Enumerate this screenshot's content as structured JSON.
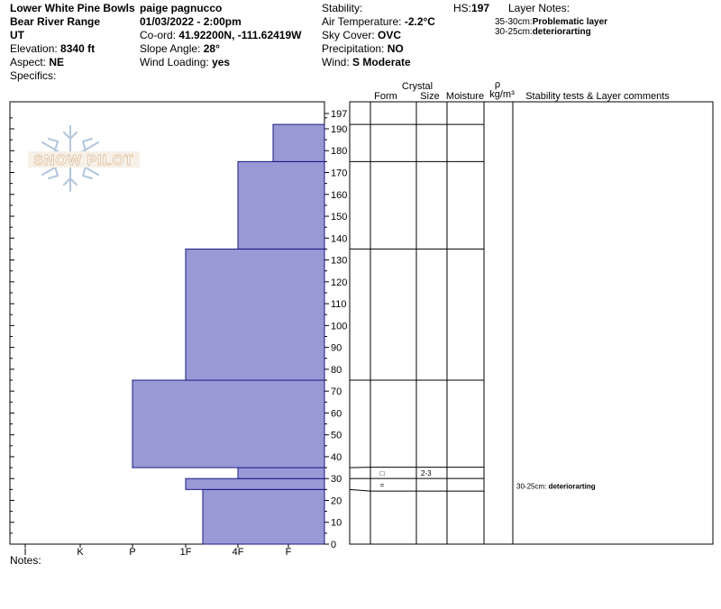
{
  "header": {
    "location": "Lower White Pine Bowls",
    "range": "Bear River Range",
    "state": "UT",
    "elevation_label": "Elevation:",
    "elevation": "8340 ft",
    "aspect_label": "Aspect:",
    "aspect": "NE",
    "specifics_label": "Specifics:",
    "observer": "paige pagnucco",
    "datetime": "01/03/2022 - 2:00pm",
    "coord_label": "Co-ord:",
    "coord": "41.92200N, -111.62419W",
    "slope_label": "Slope Angle:",
    "slope": "28°",
    "wind_loading_label": "Wind Loading:",
    "wind_loading": "yes",
    "stability_label": "Stability:",
    "air_temp_label": "Air Temperature:",
    "air_temp": "-2.2°C",
    "sky_label": "Sky Cover:",
    "sky": "OVC",
    "precip_label": "Precipitation:",
    "precip": "NO",
    "wind_label": "Wind:",
    "wind": "S Moderate",
    "hs_label": "HS:",
    "hs": "197",
    "layer_notes_title": "Layer Notes:",
    "layer_note_1_range": "35-30cm:",
    "layer_note_1_text": "Problematic layer",
    "layer_note_2_range": "30-25cm:",
    "layer_note_2_text": "deteriorarting"
  },
  "logo_text": "SNOW PILOT",
  "columns": {
    "crystal": "Crystal",
    "form": "Form",
    "size": "Size",
    "moisture": "Moisture",
    "rho": "ρ",
    "density": "kg/m³",
    "comments": "Stability tests & Layer comments"
  },
  "notes_label": "Notes:",
  "chart_data": {
    "type": "bar",
    "orientation": "horizontal",
    "x_axis": "hand hardness",
    "hardness_ticks": [
      "I",
      "K",
      "P",
      "1F",
      "4F",
      "F"
    ],
    "y_ticks": [
      0,
      10,
      20,
      30,
      40,
      50,
      60,
      70,
      80,
      90,
      100,
      110,
      120,
      130,
      140,
      150,
      160,
      170,
      180,
      190,
      197
    ],
    "ylim": [
      0,
      197
    ],
    "fill_color": "#9999d6",
    "layers": [
      {
        "bottom": 0,
        "top": 25,
        "hardness": "1F-"
      },
      {
        "bottom": 25,
        "top": 30,
        "hardness": "1F"
      },
      {
        "bottom": 30,
        "top": 35,
        "hardness": "4F"
      },
      {
        "bottom": 35,
        "top": 75,
        "hardness": "P"
      },
      {
        "bottom": 75,
        "top": 135,
        "hardness": "1F"
      },
      {
        "bottom": 135,
        "top": 175,
        "hardness": "4F"
      },
      {
        "bottom": 175,
        "top": 192,
        "hardness": "F+"
      }
    ],
    "layer_boundaries": [
      0,
      25,
      30,
      35,
      75,
      135,
      175,
      192,
      197
    ],
    "crystal_rows": [
      {
        "bottom": 30,
        "top": 35,
        "form": "□",
        "size": "2-3"
      },
      {
        "bottom": 25,
        "top": 30,
        "form": "=",
        "size": ""
      }
    ],
    "comments": [
      {
        "bottom": 25,
        "top": 30,
        "range": "30-25cm:",
        "text": "deteriorarting"
      }
    ]
  }
}
